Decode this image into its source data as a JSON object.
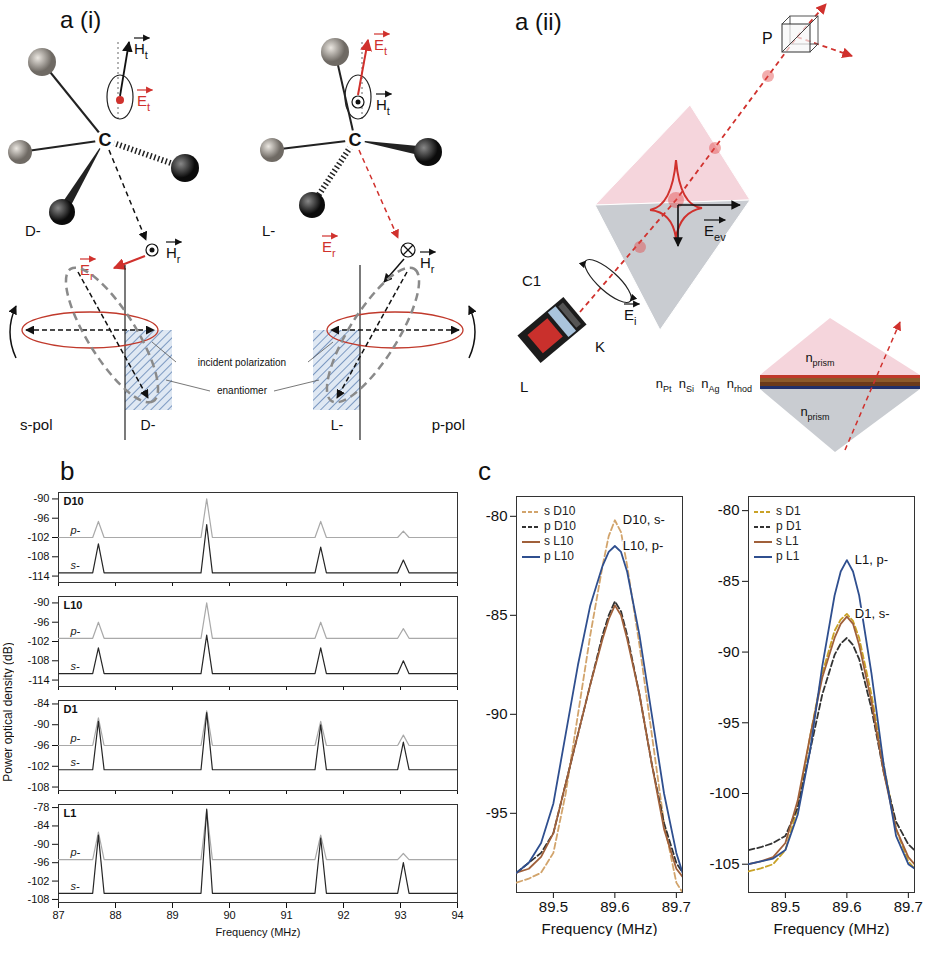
{
  "diagram": {
    "a_i": {
      "label": "a (i)",
      "molecules": [
        {
          "name": "D-",
          "center": "C",
          "vectors": [
            "Ht",
            "Et",
            "Er",
            "Hr"
          ]
        },
        {
          "name": "L-",
          "center": "C",
          "vectors": [
            "Ht",
            "Et",
            "Er",
            "Hr"
          ]
        }
      ],
      "polarizations": [
        {
          "label": "s-pol"
        },
        {
          "label": "p-pol"
        }
      ],
      "annotations": [
        "incident polarization",
        "enantiomer"
      ]
    },
    "a_ii": {
      "label": "a (ii)",
      "polarizer": "P",
      "laser": [
        "C1",
        "K",
        "L"
      ],
      "fields": [
        "Eev",
        "Ei"
      ],
      "inset": {
        "prism": "nprism",
        "layers": [
          "nPt",
          "nSi",
          "nAg",
          "nrhod"
        ]
      }
    }
  },
  "panel_b": {
    "label": "b",
    "y_label": "Power optical density (dB)"
  },
  "panel_c": {
    "label": "c"
  },
  "chart_data": [
    {
      "type": "line",
      "title": "D10",
      "x": [
        87,
        87.6,
        87.7,
        87.8,
        89.5,
        89.6,
        89.7,
        91.5,
        91.6,
        91.7,
        92.95,
        93.05,
        93.15,
        94
      ],
      "series": [
        {
          "name": "p-",
          "color": "#a9a9a9",
          "values": [
            -102,
            -102,
            -97,
            -102,
            -102,
            -90,
            -102,
            -102,
            -97,
            -102,
            -102,
            -100,
            -102,
            -102
          ]
        },
        {
          "name": "s-",
          "color": "#262626",
          "values": [
            -113,
            -113,
            -104,
            -113,
            -113,
            -98,
            -113,
            -113,
            -105,
            -113,
            -113,
            -109,
            -113,
            -113
          ]
        }
      ],
      "xlim": [
        87,
        94
      ],
      "xticks": [
        87,
        88,
        89,
        90,
        91,
        92,
        93,
        94
      ],
      "ylim": [
        -116,
        -88
      ],
      "yticks": [
        -114,
        -108,
        -102,
        -96,
        -90
      ],
      "tick_labels": "y"
    },
    {
      "type": "line",
      "title": "L10",
      "x": [
        87,
        87.6,
        87.7,
        87.8,
        89.5,
        89.6,
        89.7,
        91.5,
        91.6,
        91.7,
        92.95,
        93.05,
        93.15,
        94
      ],
      "series": [
        {
          "name": "p-",
          "color": "#a9a9a9",
          "values": [
            -101,
            -101,
            -96,
            -101,
            -101,
            -90,
            -101,
            -101,
            -96,
            -101,
            -101,
            -98,
            -101,
            -101
          ]
        },
        {
          "name": "s-",
          "color": "#262626",
          "values": [
            -112,
            -112,
            -104,
            -112,
            -112,
            -100,
            -112,
            -112,
            -104,
            -112,
            -112,
            -108,
            -112,
            -112
          ]
        }
      ],
      "xlim": [
        87,
        94
      ],
      "xticks": [
        87,
        88,
        89,
        90,
        91,
        92,
        93,
        94
      ],
      "ylim": [
        -116,
        -88
      ],
      "yticks": [
        -114,
        -108,
        -102,
        -96,
        -90
      ],
      "tick_labels": "y"
    },
    {
      "type": "line",
      "title": "D1",
      "x": [
        87,
        87.6,
        87.7,
        87.8,
        89.5,
        89.6,
        89.7,
        91.5,
        91.6,
        91.7,
        92.95,
        93.05,
        93.15,
        94
      ],
      "series": [
        {
          "name": "p-",
          "color": "#a9a9a9",
          "values": [
            -96,
            -96,
            -88,
            -96,
            -96,
            -86,
            -96,
            -96,
            -89,
            -96,
            -96,
            -93,
            -96,
            -96
          ]
        },
        {
          "name": "s-",
          "color": "#262626",
          "values": [
            -103,
            -103,
            -89,
            -103,
            -103,
            -86.5,
            -103,
            -103,
            -90,
            -103,
            -103,
            -95,
            -103,
            -103
          ]
        }
      ],
      "xlim": [
        87,
        94
      ],
      "xticks": [
        87,
        88,
        89,
        90,
        91,
        92,
        93,
        94
      ],
      "ylim": [
        -109,
        -83
      ],
      "yticks": [
        -108,
        -102,
        -96,
        -90,
        -84
      ],
      "tick_labels": "y"
    },
    {
      "type": "line",
      "title": "L1",
      "x_label": "Frequency (MHz)",
      "x": [
        87,
        87.6,
        87.7,
        87.8,
        89.5,
        89.6,
        89.7,
        91.5,
        91.6,
        91.7,
        92.95,
        93.05,
        93.15,
        94
      ],
      "series": [
        {
          "name": "p-",
          "color": "#a9a9a9",
          "values": [
            -95,
            -95,
            -86,
            -95,
            -95,
            -79,
            -95,
            -95,
            -87,
            -95,
            -95,
            -93,
            -95,
            -95
          ]
        },
        {
          "name": "s-",
          "color": "#262626",
          "values": [
            -106,
            -106,
            -87,
            -106,
            -106,
            -78.5,
            -106,
            -106,
            -88,
            -106,
            -106,
            -96,
            -106,
            -106
          ]
        }
      ],
      "xlim": [
        87,
        94
      ],
      "xticks": [
        87,
        88,
        89,
        90,
        91,
        92,
        93,
        94
      ],
      "ylim": [
        -109,
        -77
      ],
      "yticks": [
        -108,
        -102,
        -96,
        -90,
        -84,
        -78
      ]
    },
    {
      "type": "line",
      "x_label": "Frequency (MHz)",
      "legend": "top-left",
      "x": [
        89.44,
        89.46,
        89.48,
        89.5,
        89.52,
        89.54,
        89.56,
        89.58,
        89.59,
        89.6,
        89.61,
        89.62,
        89.64,
        89.66,
        89.68,
        89.7,
        89.71
      ],
      "series": [
        {
          "name": "s D10",
          "color": "#d2a46c",
          "line_style": "dashed",
          "values": [
            -98.5,
            -98.3,
            -98,
            -97,
            -94,
            -90,
            -86,
            -82.5,
            -81,
            -80.2,
            -80.8,
            -82.5,
            -86.5,
            -91,
            -95.5,
            -98.5,
            -99
          ]
        },
        {
          "name": "p D10",
          "color": "#333333",
          "line_style": "dashed",
          "values": [
            -98,
            -97.5,
            -97,
            -96,
            -93.5,
            -91,
            -88.5,
            -86,
            -85,
            -84.3,
            -84.8,
            -86,
            -89,
            -92.5,
            -95.5,
            -97.5,
            -98
          ]
        },
        {
          "name": "s L10",
          "color": "#a0603a",
          "line_style": "solid",
          "values": [
            -98,
            -97.8,
            -97.2,
            -96,
            -93.5,
            -91,
            -88.5,
            -86.2,
            -85.2,
            -84.5,
            -85,
            -86.2,
            -89,
            -92.5,
            -95.8,
            -97.8,
            -98.2
          ]
        },
        {
          "name": "p L10",
          "color": "#2f4f8f",
          "line_style": "solid",
          "values": [
            -98,
            -97.5,
            -96.5,
            -94.5,
            -91,
            -87.5,
            -84.5,
            -82.5,
            -81.8,
            -81.5,
            -81.8,
            -82.8,
            -86,
            -90,
            -94,
            -97,
            -98
          ]
        }
      ],
      "annotations": [
        {
          "text": "D10, s-",
          "series": "s D10"
        },
        {
          "text": "L10, p-",
          "series": "p L10"
        }
      ],
      "xlim": [
        89.44,
        89.71
      ],
      "xticks": [
        89.5,
        89.6,
        89.7
      ],
      "ylim": [
        -99,
        -79
      ],
      "yticks": [
        -95,
        -90,
        -85,
        -80
      ]
    },
    {
      "type": "line",
      "x_label": "Frequency (MHz)",
      "legend": "top-left",
      "x": [
        89.44,
        89.46,
        89.48,
        89.5,
        89.52,
        89.54,
        89.56,
        89.58,
        89.59,
        89.6,
        89.61,
        89.62,
        89.64,
        89.66,
        89.68,
        89.7,
        89.71
      ],
      "series": [
        {
          "name": "s D1",
          "color": "#c9a227",
          "line_style": "dashed",
          "values": [
            -105.5,
            -105.3,
            -105,
            -104,
            -101,
            -96,
            -91.5,
            -88.5,
            -87.7,
            -87.3,
            -87.8,
            -89,
            -93,
            -98,
            -102.5,
            -104.8,
            -105.3
          ]
        },
        {
          "name": "p D1",
          "color": "#333333",
          "line_style": "dashed",
          "values": [
            -104,
            -103.8,
            -103.5,
            -103,
            -101,
            -97,
            -93,
            -90.2,
            -89.4,
            -89,
            -89.5,
            -90.5,
            -94,
            -98.5,
            -102,
            -103.6,
            -104
          ]
        },
        {
          "name": "s L1",
          "color": "#a0603a",
          "line_style": "solid",
          "values": [
            -105,
            -104.8,
            -104.5,
            -103.5,
            -100.5,
            -96,
            -91.8,
            -89,
            -88,
            -87.5,
            -88,
            -89.5,
            -93.5,
            -98.5,
            -102.5,
            -104.5,
            -105
          ]
        },
        {
          "name": "p L1",
          "color": "#2f4f8f",
          "line_style": "solid",
          "values": [
            -105,
            -104.8,
            -104.6,
            -104,
            -101.5,
            -97,
            -91,
            -86,
            -84.3,
            -83.5,
            -84.3,
            -86,
            -91.5,
            -98,
            -103,
            -105,
            -105.3
          ]
        }
      ],
      "annotations": [
        {
          "text": "L1, p-",
          "series": "p L1"
        },
        {
          "text": "D1, s-",
          "series": "s D1"
        }
      ],
      "xlim": [
        89.44,
        89.71
      ],
      "xticks": [
        89.5,
        89.6,
        89.7
      ],
      "ylim": [
        -107,
        -79
      ],
      "yticks": [
        -105,
        -100,
        -95,
        -90,
        -85,
        -80
      ]
    }
  ]
}
